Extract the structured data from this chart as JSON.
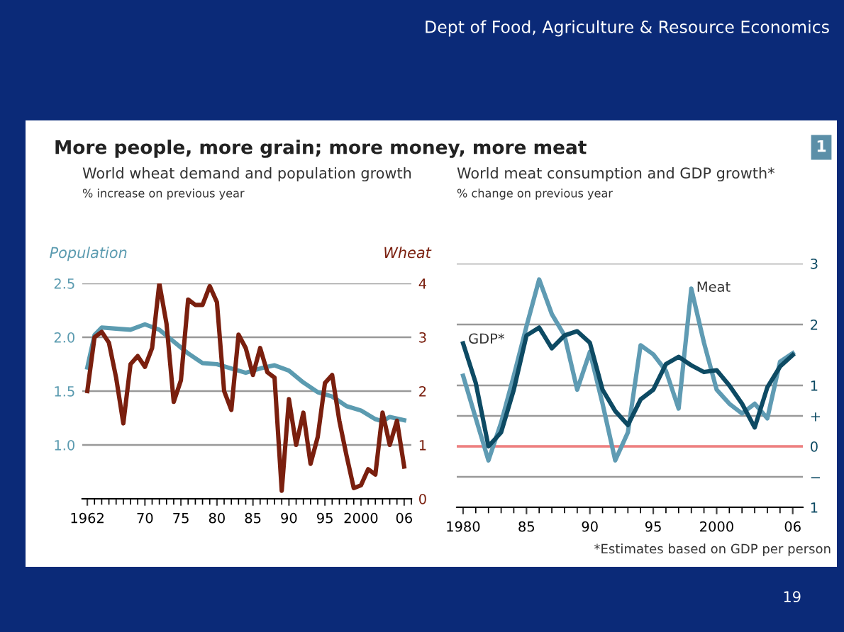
{
  "chart_data": [
    {
      "type": "line",
      "title": "World wheat demand and population growth",
      "subtitle": "% increase on previous year",
      "ylabel": "Population",
      "y2label": "Wheat",
      "annotations": [
        "Dept of Food, Agriculture & Resource Economics",
        "More people, more grain; more money, more meat",
        "1",
        "19"
      ],
      "xlim": [
        1961.3,
        2007
      ],
      "xticks": [
        1962,
        {
          "value": 1970,
          "label": "70"
        },
        {
          "value": 1975,
          "label": "75"
        },
        {
          "value": 1980,
          "label": "80"
        },
        {
          "value": 1985,
          "label": "85"
        },
        {
          "value": 1990,
          "label": "90"
        },
        {
          "value": 1995,
          "label": "95"
        },
        2000,
        {
          "value": 2006,
          "label": "06"
        }
      ],
      "ylim": [
        0.5,
        2.5
      ],
      "yticks": [
        {
          "value": 0.5,
          "label": null
        },
        {
          "value": 1.0,
          "label": "1.0"
        },
        1.5,
        {
          "value": 2.0,
          "label": "2.0"
        },
        2.5
      ],
      "y2lim": [
        0,
        4
      ],
      "y2ticks": [
        0,
        1,
        2,
        3,
        4
      ],
      "grid": "y",
      "series": [
        {
          "color": "#5b9bb0",
          "x": [
            1962,
            1963,
            1964,
            1966,
            1968,
            1970,
            1972,
            1974,
            1976,
            1978,
            1980,
            1982,
            1984,
            1986,
            1988,
            1990,
            1992,
            1994,
            1996,
            1998,
            2000,
            2002,
            2003,
            2004,
            2006
          ],
          "values": [
            1.72,
            2.02,
            2.09,
            2.08,
            2.07,
            2.12,
            2.07,
            1.96,
            1.85,
            1.76,
            1.75,
            1.71,
            1.67,
            1.71,
            1.74,
            1.69,
            1.58,
            1.49,
            1.45,
            1.36,
            1.32,
            1.24,
            1.22,
            1.26,
            1.23
          ]
        },
        {
          "color": "#7a1f0e",
          "axis": "y2",
          "x": [
            1962,
            1963,
            1964,
            1965,
            1966,
            1967,
            1968,
            1969,
            1970,
            1971,
            1972,
            1973,
            1974,
            1975,
            1976,
            1977,
            1978,
            1979,
            1980,
            1981,
            1982,
            1983,
            1984,
            1985,
            1986,
            1987,
            1988,
            1989,
            1990,
            1991,
            1992,
            1993,
            1994,
            1995,
            1996,
            1997,
            1998,
            1999,
            2000,
            2001,
            2002,
            2003,
            2004,
            2005,
            2006
          ],
          "values": [
            2.0,
            3.0,
            3.1,
            2.9,
            2.25,
            1.4,
            2.5,
            2.65,
            2.45,
            2.8,
            4.0,
            3.25,
            1.8,
            2.2,
            3.7,
            3.6,
            3.6,
            3.95,
            3.65,
            2.0,
            1.65,
            3.05,
            2.8,
            2.3,
            2.8,
            2.35,
            2.25,
            0.15,
            1.85,
            1.0,
            1.6,
            0.65,
            1.15,
            2.15,
            2.3,
            1.45,
            0.8,
            0.2,
            0.25,
            0.55,
            0.45,
            1.6,
            1.0,
            1.45,
            0.6
          ]
        }
      ]
    },
    {
      "type": "line",
      "title": "World meat consumption and GDP growth*",
      "subtitle": "% change on previous year",
      "annotations": [
        {
          "text": "Meat",
          "x": 1998.4,
          "y": 2.6
        },
        {
          "text": "GDP*",
          "x": 1980.4,
          "y": 1.75
        },
        "*Estimates based on GDP per person"
      ],
      "xlim": [
        1979.5,
        2006.8
      ],
      "xticks": [
        1980,
        {
          "value": 1985,
          "label": "85"
        },
        {
          "value": 1990,
          "label": "90"
        },
        {
          "value": 1995,
          "label": "95"
        },
        2000,
        {
          "value": 2006,
          "label": "06"
        }
      ],
      "ylim": [
        -1,
        3
      ],
      "yticks": [
        {
          "value": -1,
          "label": "1"
        },
        {
          "value": -0.5,
          "label": "−"
        },
        0,
        {
          "value": 0.5,
          "label": "+"
        },
        1,
        2,
        3
      ],
      "grid": "y",
      "ref_lines": [
        {
          "axis": "y",
          "value": 0,
          "color": "#f08080"
        }
      ],
      "series": [
        {
          "color": "#5f9bb3",
          "x": [
            1980,
            1981,
            1982,
            1983,
            1984,
            1985,
            1986,
            1987,
            1988,
            1989,
            1990,
            1991,
            1992,
            1993,
            1994,
            1995,
            1996,
            1997,
            1998,
            1999,
            2000,
            2001,
            2002,
            2003,
            2004,
            2005,
            2006
          ],
          "values": [
            1.16,
            0.46,
            -0.23,
            0.39,
            1.16,
            1.97,
            2.74,
            2.17,
            1.82,
            0.93,
            1.55,
            0.7,
            -0.23,
            0.23,
            1.66,
            1.51,
            1.24,
            0.62,
            2.59,
            1.7,
            0.93,
            0.7,
            0.54,
            0.7,
            0.46,
            1.39,
            1.53
          ]
        },
        {
          "color": "#0d4a63",
          "x": [
            1980,
            1981,
            1982,
            1983,
            1984,
            1985,
            1986,
            1987,
            1988,
            1989,
            1990,
            1991,
            1992,
            1993,
            1994,
            1995,
            1996,
            1997,
            1998,
            1999,
            2000,
            2001,
            2002,
            2003,
            2004,
            2005,
            2006
          ],
          "values": [
            1.69,
            1.04,
            0.0,
            0.23,
            0.93,
            1.82,
            1.95,
            1.61,
            1.82,
            1.89,
            1.7,
            0.93,
            0.58,
            0.35,
            0.77,
            0.93,
            1.35,
            1.47,
            1.33,
            1.22,
            1.25,
            1.0,
            0.7,
            0.31,
            0.97,
            1.31,
            1.5
          ]
        }
      ]
    }
  ]
}
